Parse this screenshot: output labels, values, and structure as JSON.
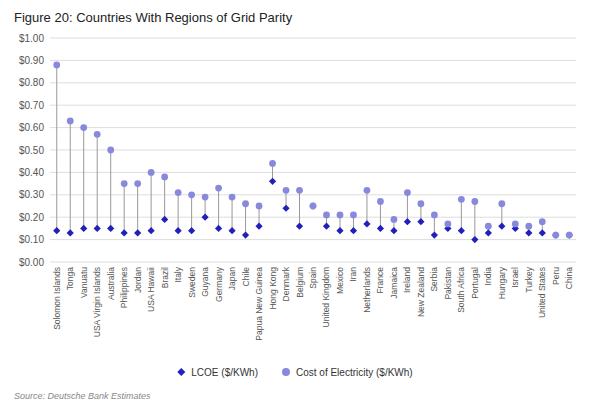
{
  "chart_data": {
    "type": "scatter",
    "title": "Figure 20: Countries With Regions of Grid Parity",
    "annotations": [
      "Source: Deutsche Bank Estimates"
    ],
    "categories": [
      "Solomon Islands",
      "Tonga",
      "Vanuatu",
      "USA Virgin Islands",
      "Australia",
      "Philippines",
      "Jordan",
      "USA Hawaii",
      "Brazil",
      "Italy",
      "Sweden",
      "Guyana",
      "Germany",
      "Japan",
      "Chile",
      "Papua New Guinea",
      "Hong Kong",
      "Denmark",
      "Belgium",
      "Spain",
      "United Kingdom",
      "Mexico",
      "Iran",
      "Netherlands",
      "France",
      "Jamaica",
      "Ireland",
      "New Zealand",
      "Serbia",
      "Pakistan",
      "South Africa",
      "Portugal",
      "India",
      "Hungary",
      "Israel",
      "Turkey",
      "United States",
      "Peru",
      "China"
    ],
    "series": [
      {
        "name": "LCOE ($/KWh)",
        "color": "#2020bb",
        "marker": "diamond",
        "values": [
          0.14,
          0.13,
          0.15,
          0.15,
          0.15,
          0.13,
          0.13,
          0.14,
          0.19,
          0.14,
          0.14,
          0.2,
          0.15,
          0.14,
          0.12,
          0.16,
          0.36,
          0.24,
          0.16,
          0.25,
          0.16,
          0.14,
          0.14,
          0.17,
          0.15,
          0.14,
          0.18,
          0.18,
          0.12,
          0.15,
          0.14,
          0.1,
          0.13,
          0.16,
          0.15,
          0.13,
          0.13,
          0.12,
          0.12
        ]
      },
      {
        "name": "Cost of Electricity  ($/KWh)",
        "color": "#8888dd",
        "marker": "circle",
        "values": [
          0.88,
          0.63,
          0.6,
          0.57,
          0.5,
          0.35,
          0.35,
          0.4,
          0.38,
          0.31,
          0.3,
          0.29,
          0.33,
          0.29,
          0.26,
          0.25,
          0.44,
          0.32,
          0.32,
          0.25,
          0.21,
          0.21,
          0.21,
          0.32,
          0.27,
          0.19,
          0.31,
          0.26,
          0.21,
          0.17,
          0.28,
          0.27,
          0.16,
          0.26,
          0.17,
          0.16,
          0.18,
          0.12,
          0.12
        ]
      }
    ],
    "ylim": [
      0,
      1.0
    ],
    "yticks": [
      {
        "value": 0.0,
        "label": "$0.00"
      },
      {
        "value": 0.1,
        "label": "$0.10"
      },
      {
        "value": 0.2,
        "label": "$0.20"
      },
      {
        "value": 0.3,
        "label": "$0.30"
      },
      {
        "value": 0.4,
        "label": "$0.40"
      },
      {
        "value": 0.5,
        "label": "$0.50"
      },
      {
        "value": 0.6,
        "label": "$0.60"
      },
      {
        "value": 0.7,
        "label": "$0.70"
      },
      {
        "value": 0.8,
        "label": "$0.80"
      },
      {
        "value": 0.9,
        "label": "$0.90"
      },
      {
        "value": 1.0,
        "label": "$1.00"
      }
    ],
    "grid": true,
    "legend": "bottom"
  }
}
